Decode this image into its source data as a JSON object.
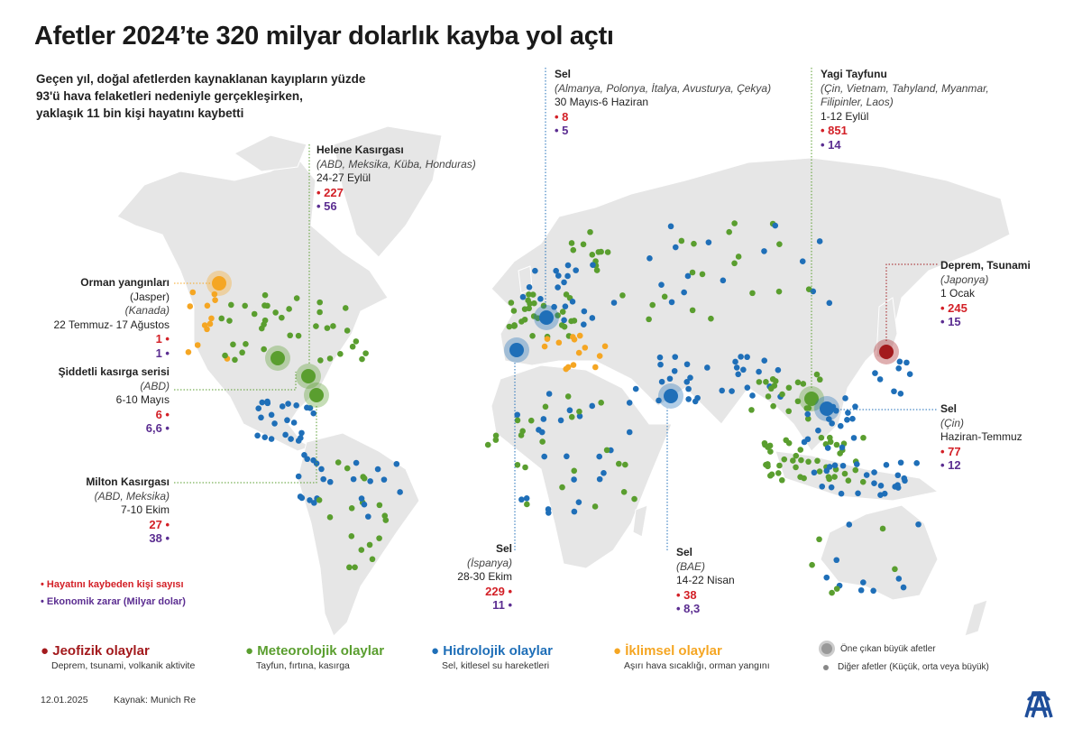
{
  "title": "Afetler 2024’te 320 milyar dolarlık kayba yol açtı",
  "intro": [
    "Geçen yıl, doğal afetlerden kaynaklanan kayıpların yüzde",
    "93'ü hava felaketleri nedeniyle gerçekleşirken,",
    "yaklaşık 11 bin kişi hayatını kaybetti"
  ],
  "events": {
    "helene": {
      "name": "Helene Kasırgası",
      "countries": "(ABD, Meksika, Küba, Honduras)",
      "date": "24-27 Eylül",
      "deaths": "• 227",
      "loss": "• 56",
      "type": "meteorological"
    },
    "europe": {
      "name": "Sel",
      "countries": "(Almanya, Polonya, İtalya, Avusturya, Çekya)",
      "date": "30 Mayıs-6 Haziran",
      "deaths": "• 8",
      "loss": "• 5",
      "type": "hydrological"
    },
    "yagi": {
      "name": "Yagi Tayfunu",
      "countries": "(Çin, Vietnam, Tahyland, Myanmar,",
      "countries2": "Filipinler, Laos)",
      "date": "1-12 Eylül",
      "deaths": "• 851",
      "loss": "• 14",
      "type": "meteorological"
    },
    "japan": {
      "name": "Deprem, Tsunami",
      "countries": "(Japonya)",
      "date": "1 Ocak",
      "deaths": "• 245",
      "loss": "• 15",
      "type": "geophysical"
    },
    "jasper": {
      "name": "Orman yangınları",
      "place": "(Jasper)",
      "countries": "(Kanada)",
      "date": "22 Temmuz- 17 Ağustos",
      "deaths": "1 •",
      "loss": "1 •",
      "type": "climatological"
    },
    "tornado": {
      "name": "Şiddetli kasırga serisi",
      "countries": "(ABD)",
      "date": "6-10 Mayıs",
      "deaths": "6 •",
      "loss": "6,6 •",
      "type": "meteorological"
    },
    "china": {
      "name": "Sel",
      "countries": "(Çin)",
      "date": "Haziran-Temmuz",
      "deaths": "• 77",
      "loss": "• 12",
      "type": "hydrological"
    },
    "milton": {
      "name": "Milton Kasırgası",
      "countries": "(ABD, Meksika)",
      "date": "7-10 Ekim",
      "deaths": "27 •",
      "loss": "38 •",
      "type": "meteorological"
    },
    "spain": {
      "name": "Sel",
      "countries": "(İspanya)",
      "date": "28-30 Ekim",
      "deaths": "229 •",
      "loss": "11 •",
      "type": "hydrological"
    },
    "uae": {
      "name": "Sel",
      "countries": "(BAE)",
      "date": "14-22 Nisan",
      "deaths": "• 38",
      "loss": "• 8,3",
      "type": "hydrological"
    }
  },
  "key": {
    "deaths": "Hayatını kaybeden kişi sayısı",
    "loss": "Ekonomik zarar (Milyar dolar)"
  },
  "legend": [
    {
      "title": "Jeofizik olaylar",
      "sub": "Deprem, tsunami, volkanik aktivite",
      "color": "#a31a1d"
    },
    {
      "title": "Meteorolojik olaylar",
      "sub": "Tayfun, fırtına, kasırga",
      "color": "#5a9e2f"
    },
    {
      "title": "Hidrolojik olaylar",
      "sub": "Sel, kitlesel su hareketleri",
      "color": "#1f6fb8"
    },
    {
      "title": "İklimsel olaylar",
      "sub": "Aşırı hava sıcaklığı, orman yangını",
      "color": "#f5a623"
    }
  ],
  "size_legend": {
    "major": "Öne çıkan büyük afetler",
    "other": "Diğer afetler (Küçük, orta veya büyük)"
  },
  "footer": {
    "date": "12.01.2025",
    "source": "Kaynak: Munich Re"
  },
  "colors": {
    "deaths": "#d32027",
    "loss": "#5b2d91",
    "land": "#e6e6e6"
  }
}
